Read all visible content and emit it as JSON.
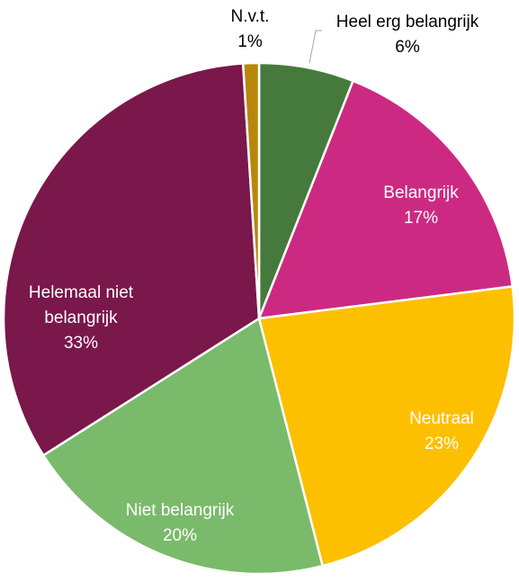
{
  "chart_data": {
    "type": "pie",
    "title": "",
    "legend": "none",
    "slices": [
      {
        "name": "Heel erg belangrijk",
        "value": 6,
        "label": "6%",
        "color": "#467a3c",
        "label_color": "#000000",
        "label_side": "outside"
      },
      {
        "name": "Belangrijk",
        "value": 17,
        "label": "17%",
        "color": "#cc2a82",
        "label_color": "#ffffff",
        "label_side": "inside"
      },
      {
        "name": "Neutraal",
        "value": 23,
        "label": "23%",
        "color": "#fcc000",
        "label_color": "#ffffff",
        "label_side": "inside"
      },
      {
        "name": "Niet belangrijk",
        "value": 20,
        "label": "20%",
        "color": "#7aba6b",
        "label_color": "#ffffff",
        "label_side": "inside"
      },
      {
        "name": "Helemaal niet belangrijk",
        "value": 33,
        "label": "33%",
        "color": "#7a174b",
        "label_color": "#ffffff",
        "label_side": "inside"
      },
      {
        "name": "N.v.t.",
        "value": 1,
        "label": "1%",
        "color": "#b8860b",
        "label_color": "#000000",
        "label_side": "outside"
      }
    ]
  }
}
